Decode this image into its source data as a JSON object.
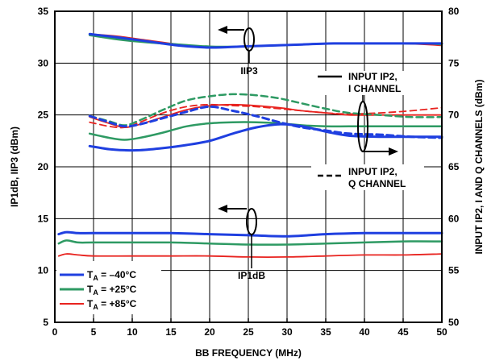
{
  "chart_data": {
    "type": "line",
    "xlabel": "BB FREQUENCY (MHz)",
    "ylabel_left": "IP1dB, IIP3 (dBm)",
    "ylabel_right": "INPUT IP2, I AND Q CHANNELS (dBm)",
    "xlim": [
      0,
      50
    ],
    "ylim_left": [
      5,
      35
    ],
    "ylim_right": [
      50,
      80
    ],
    "x_ticks": [
      "0",
      "5",
      "10",
      "15",
      "20",
      "25",
      "30",
      "35",
      "40",
      "45",
      "50"
    ],
    "y_ticks_left": [
      "5",
      "10",
      "15",
      "20",
      "25",
      "30",
      "35"
    ],
    "y_ticks_right": [
      "50",
      "55",
      "60",
      "65",
      "70",
      "75",
      "80"
    ],
    "grid": true,
    "colors": {
      "m40": "#1f3fe0",
      "p25": "#2e9a63",
      "p85": "#e8231f"
    },
    "legend": {
      "position": "bottom-left",
      "entries": [
        {
          "sub": "A",
          "prefix": "T",
          "value": " = –40°C",
          "color": "#1f3fe0"
        },
        {
          "sub": "A",
          "prefix": "T",
          "value": " = +25°C",
          "color": "#2e9a63"
        },
        {
          "sub": "A",
          "prefix": "T",
          "value": " = +85°C",
          "color": "#e8231f"
        }
      ]
    },
    "annotations": {
      "iip3": "IIP3",
      "ip1db": "IP1dB",
      "ip2_i_line1": "INPUT IP2,",
      "ip2_i_line2": "I CHANNEL",
      "ip2_q_line1": "INPUT IP2,",
      "ip2_q_line2": "Q CHANNEL"
    },
    "series": [
      {
        "group": "IIP3",
        "temp": "m40",
        "axis": "left",
        "dash": false,
        "x": [
          4.5,
          8,
          12,
          16,
          20,
          24,
          28,
          32,
          36,
          40,
          44,
          48,
          50
        ],
        "y": [
          32.8,
          32.5,
          32.1,
          31.7,
          31.5,
          31.6,
          31.7,
          31.8,
          31.9,
          31.9,
          31.9,
          31.9,
          31.9
        ]
      },
      {
        "group": "IIP3",
        "temp": "p25",
        "axis": "left",
        "dash": false,
        "x": [
          4.5,
          8,
          12,
          16,
          20,
          24,
          28,
          32,
          36,
          40,
          44,
          48,
          50
        ],
        "y": [
          32.7,
          32.3,
          32.0,
          31.8,
          31.6,
          31.6,
          31.7,
          31.8,
          31.9,
          31.9,
          31.9,
          31.9,
          31.8
        ]
      },
      {
        "group": "IIP3",
        "temp": "p85",
        "axis": "left",
        "dash": false,
        "x": [
          4.5,
          8,
          12,
          16,
          20,
          24,
          28,
          32,
          36,
          40,
          44,
          48,
          50
        ],
        "y": [
          32.8,
          32.6,
          32.2,
          31.8,
          31.5,
          31.6,
          31.7,
          31.8,
          31.9,
          31.9,
          31.9,
          31.8,
          31.7
        ]
      },
      {
        "group": "IP1dB",
        "temp": "m40",
        "axis": "left",
        "dash": false,
        "x": [
          0.5,
          1.5,
          3,
          5,
          10,
          15,
          20,
          25,
          30,
          35,
          40,
          45,
          50
        ],
        "y": [
          13.5,
          13.7,
          13.6,
          13.6,
          13.6,
          13.6,
          13.5,
          13.4,
          13.3,
          13.5,
          13.6,
          13.6,
          13.6
        ]
      },
      {
        "group": "IP1dB",
        "temp": "p25",
        "axis": "left",
        "dash": false,
        "x": [
          0.5,
          1.5,
          3,
          5,
          10,
          15,
          20,
          25,
          30,
          35,
          40,
          45,
          50
        ],
        "y": [
          12.6,
          12.9,
          12.7,
          12.7,
          12.7,
          12.7,
          12.6,
          12.5,
          12.5,
          12.6,
          12.7,
          12.8,
          12.8
        ]
      },
      {
        "group": "IP1dB",
        "temp": "p85",
        "axis": "left",
        "dash": false,
        "x": [
          0.5,
          1.5,
          3,
          5,
          10,
          15,
          20,
          25,
          30,
          35,
          40,
          45,
          50
        ],
        "y": [
          11.4,
          11.6,
          11.5,
          11.4,
          11.4,
          11.4,
          11.4,
          11.3,
          11.3,
          11.4,
          11.5,
          11.5,
          11.6
        ]
      },
      {
        "group": "IP2 I",
        "temp": "m40",
        "axis": "right",
        "dash": false,
        "x": [
          4.5,
          7,
          9,
          11,
          14,
          17,
          20,
          23,
          26,
          29,
          32,
          35,
          38,
          42,
          46,
          50
        ],
        "y": [
          67.0,
          66.7,
          66.6,
          66.6,
          66.8,
          67.1,
          67.5,
          68.2,
          68.8,
          69.1,
          68.9,
          68.4,
          68.0,
          67.9,
          67.9,
          67.9
        ]
      },
      {
        "group": "IP2 I",
        "temp": "p25",
        "axis": "right",
        "dash": false,
        "x": [
          4.5,
          7,
          9,
          11,
          14,
          17,
          20,
          23,
          26,
          29,
          32,
          35,
          38,
          42,
          46,
          50
        ],
        "y": [
          68.2,
          67.8,
          67.6,
          67.8,
          68.3,
          68.9,
          69.2,
          69.3,
          69.3,
          69.2,
          69.0,
          68.9,
          68.9,
          68.9,
          68.9,
          68.9
        ]
      },
      {
        "group": "IP2 I",
        "temp": "p85",
        "axis": "right",
        "dash": false,
        "x": [
          4.5,
          7,
          9,
          11,
          14,
          17,
          20,
          23,
          26,
          29,
          32,
          35,
          38,
          42,
          46,
          50
        ],
        "y": [
          69.8,
          69.2,
          68.8,
          69.1,
          69.8,
          70.5,
          70.9,
          71.0,
          70.9,
          70.7,
          70.4,
          70.2,
          70.0,
          70.0,
          70.0,
          70.0
        ]
      },
      {
        "group": "IP2 Q",
        "temp": "m40",
        "axis": "right",
        "dash": true,
        "x": [
          4.5,
          7,
          9,
          11,
          14,
          17,
          20,
          23,
          26,
          29,
          32,
          35,
          38,
          42,
          46,
          50
        ],
        "y": [
          69.9,
          69.3,
          68.9,
          69.1,
          69.7,
          70.3,
          70.8,
          70.4,
          69.9,
          69.3,
          68.8,
          68.5,
          68.2,
          68.1,
          67.9,
          67.8
        ]
      },
      {
        "group": "IP2 Q",
        "temp": "p25",
        "axis": "right",
        "dash": true,
        "x": [
          4.5,
          7,
          9,
          11,
          14,
          17,
          20,
          23,
          26,
          29,
          32,
          35,
          38,
          42,
          46,
          50
        ],
        "y": [
          69.9,
          69.4,
          69.0,
          69.5,
          70.5,
          71.4,
          71.8,
          72.0,
          71.9,
          71.6,
          71.1,
          70.6,
          70.2,
          70.0,
          69.8,
          69.8
        ]
      },
      {
        "group": "IP2 Q",
        "temp": "p85",
        "axis": "right",
        "dash": true,
        "x": [
          4.5,
          7,
          9,
          11,
          14,
          17,
          20,
          23,
          26,
          29,
          32,
          35,
          38,
          42,
          46,
          50
        ],
        "y": [
          69.3,
          68.9,
          68.8,
          69.3,
          70.2,
          70.8,
          71.0,
          70.9,
          70.8,
          70.6,
          70.4,
          70.2,
          70.1,
          70.2,
          70.4,
          70.7
        ]
      }
    ]
  }
}
